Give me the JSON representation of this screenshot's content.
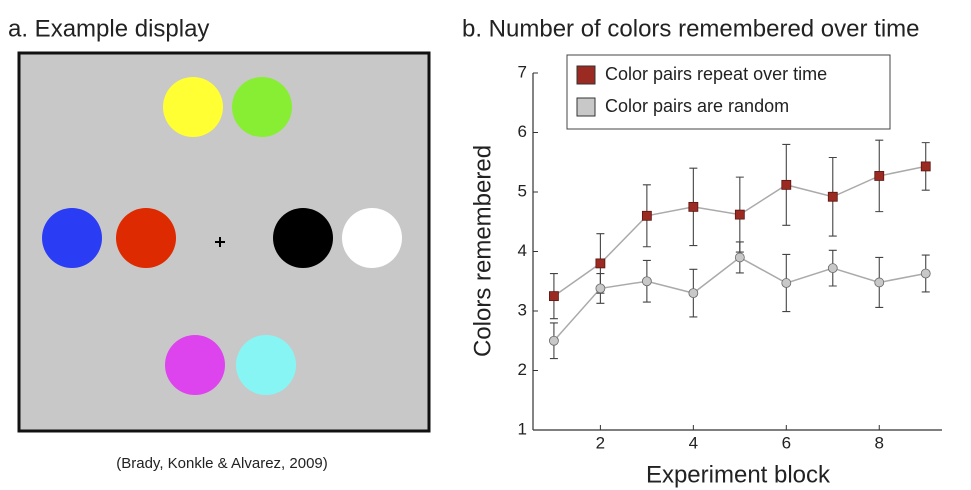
{
  "panel_a": {
    "title": "a. Example display",
    "caption": "(Brady, Konkle & Alvarez, 2009)"
  },
  "chart_data": {
    "type": "line",
    "title": "b. Number of colors remembered over time",
    "x_label": "Experiment block",
    "y_label": "Colors remembered",
    "x": [
      1,
      2,
      3,
      4,
      5,
      6,
      7,
      8,
      9
    ],
    "series": [
      {
        "name": "Color pairs repeat over time",
        "color": "#9b2a22",
        "marker": "square",
        "values": [
          3.25,
          3.8,
          4.6,
          4.75,
          4.62,
          5.12,
          4.92,
          5.27,
          5.43
        ],
        "errors": [
          0.38,
          0.5,
          0.52,
          0.65,
          0.63,
          0.68,
          0.66,
          0.6,
          0.4
        ]
      },
      {
        "name": "Color pairs are random",
        "color": "#c8c8c8",
        "marker": "circle",
        "values": [
          2.5,
          3.38,
          3.5,
          3.3,
          3.9,
          3.47,
          3.72,
          3.48,
          3.63
        ],
        "errors": [
          0.3,
          0.25,
          0.35,
          0.4,
          0.26,
          0.48,
          0.3,
          0.42,
          0.31
        ]
      }
    ],
    "xlim": [
      0.55,
      9.35
    ],
    "ylim": [
      1,
      7
    ],
    "xticks": [
      2,
      4,
      6,
      8
    ],
    "yticks": [
      1,
      2,
      3,
      4,
      5,
      6,
      7
    ],
    "grid": false,
    "legend": "upper center"
  }
}
